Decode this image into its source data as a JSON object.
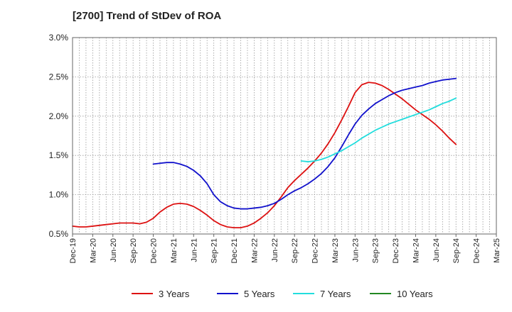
{
  "title": "[2700]  Trend of StDev of ROA",
  "chart_data": {
    "type": "line",
    "title": "[2700]  Trend of StDev of ROA",
    "xlabel": "",
    "ylabel": "",
    "ylim": [
      0.5,
      3.0
    ],
    "y_ticks": [
      "0.5%",
      "1.0%",
      "1.5%",
      "2.0%",
      "2.5%",
      "3.0%"
    ],
    "y_tick_values": [
      0.5,
      1.0,
      1.5,
      2.0,
      2.5,
      3.0
    ],
    "x_ticks": [
      "Dec-19",
      "Mar-20",
      "Jun-20",
      "Sep-20",
      "Dec-20",
      "Mar-21",
      "Jun-21",
      "Sep-21",
      "Dec-21",
      "Mar-22",
      "Jun-22",
      "Sep-22",
      "Dec-22",
      "Mar-23",
      "Jun-23",
      "Sep-23",
      "Dec-23",
      "Mar-24",
      "Jun-24",
      "Sep-24",
      "Dec-24",
      "Mar-25"
    ],
    "x_months_per_tick": 3,
    "grid": true,
    "legend_position": "bottom",
    "series": [
      {
        "name": "3 Years",
        "color": "#dd1111",
        "values": [
          0.6,
          0.59,
          0.59,
          0.6,
          0.61,
          0.62,
          0.63,
          0.64,
          0.64,
          0.64,
          0.63,
          0.65,
          0.7,
          0.78,
          0.84,
          0.88,
          0.89,
          0.88,
          0.85,
          0.8,
          0.74,
          0.67,
          0.62,
          0.59,
          0.58,
          0.58,
          0.6,
          0.64,
          0.7,
          0.77,
          0.86,
          0.97,
          1.09,
          1.18,
          1.26,
          1.34,
          1.43,
          1.53,
          1.65,
          1.79,
          1.95,
          2.12,
          2.3,
          2.4,
          2.43,
          2.42,
          2.39,
          2.34,
          2.28,
          2.22,
          2.15,
          2.08,
          2.02,
          1.96,
          1.89,
          1.81,
          1.72,
          1.64
        ]
      },
      {
        "name": "5 Years",
        "color": "#1111cc",
        "values": [
          null,
          null,
          null,
          null,
          null,
          null,
          null,
          null,
          null,
          null,
          null,
          null,
          1.39,
          1.4,
          1.41,
          1.41,
          1.39,
          1.36,
          1.31,
          1.24,
          1.14,
          1.0,
          0.91,
          0.86,
          0.83,
          0.82,
          0.82,
          0.83,
          0.84,
          0.86,
          0.89,
          0.94,
          1.0,
          1.05,
          1.09,
          1.14,
          1.2,
          1.27,
          1.36,
          1.47,
          1.61,
          1.76,
          1.9,
          2.01,
          2.09,
          2.16,
          2.21,
          2.26,
          2.3,
          2.33,
          2.35,
          2.37,
          2.39,
          2.42,
          2.44,
          2.46,
          2.47,
          2.48
        ]
      },
      {
        "name": "7 Years",
        "color": "#22dddd",
        "values": [
          null,
          null,
          null,
          null,
          null,
          null,
          null,
          null,
          null,
          null,
          null,
          null,
          null,
          null,
          null,
          null,
          null,
          null,
          null,
          null,
          null,
          null,
          null,
          null,
          null,
          null,
          null,
          null,
          null,
          null,
          null,
          null,
          null,
          null,
          1.43,
          1.42,
          1.43,
          1.45,
          1.48,
          1.52,
          1.56,
          1.61,
          1.66,
          1.72,
          1.77,
          1.82,
          1.86,
          1.9,
          1.93,
          1.96,
          1.99,
          2.02,
          2.05,
          2.08,
          2.12,
          2.16,
          2.19,
          2.23
        ]
      },
      {
        "name": "10 Years",
        "color": "#228822",
        "values": []
      }
    ]
  }
}
